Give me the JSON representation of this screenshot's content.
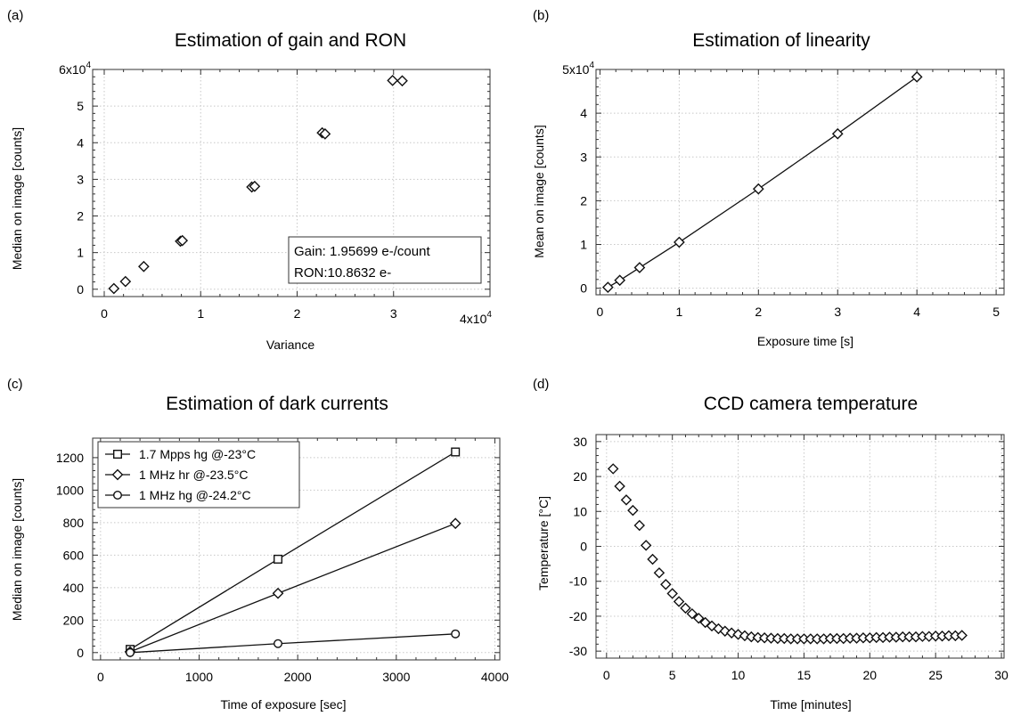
{
  "panels": {
    "a": {
      "label": "(a)",
      "exponent_note": "4x10",
      "info_box": {
        "gain": "Gain: 1.95699 e-/count",
        "ron": "RON:10.8632 e-"
      }
    },
    "b": {
      "label": "(b)"
    },
    "c": {
      "label": "(c)"
    },
    "d": {
      "label": "(d)"
    }
  },
  "chart_data": [
    {
      "id": "a",
      "type": "scatter",
      "title": "Estimation of gain and RON",
      "xlabel": "Variance",
      "ylabel": "Median on image [counts]",
      "xlim": [
        -0.12,
        4.0
      ],
      "ylim": [
        -0.2,
        6.0
      ],
      "x_scale": "x10^4",
      "y_scale": "x10^4",
      "xticks": [
        0,
        1,
        2,
        3
      ],
      "xtick_labels": [
        "0",
        "1",
        "2",
        "3"
      ],
      "yticks": [
        0,
        1,
        2,
        3,
        4,
        5,
        6
      ],
      "ytick_labels": [
        "0",
        "1",
        "2",
        "3",
        "4",
        "5",
        "6x10"
      ],
      "marker": "diamond",
      "grid": true,
      "series": [
        {
          "x": [
            0.1,
            0.22,
            0.41,
            0.79,
            0.81,
            1.53,
            1.56,
            2.26,
            2.29,
            2.99,
            3.09
          ],
          "y": [
            0.02,
            0.21,
            0.62,
            1.31,
            1.33,
            2.79,
            2.81,
            4.27,
            4.24,
            5.7,
            5.69
          ]
        }
      ]
    },
    {
      "id": "b",
      "type": "line",
      "title": "Estimation of linearity",
      "xlabel": "Exposure time [s]",
      "ylabel": "Mean on image [counts]",
      "xlim": [
        -0.05,
        5.1
      ],
      "ylim": [
        -0.15,
        5.0
      ],
      "y_scale": "x10^4",
      "xticks": [
        0,
        1,
        2,
        3,
        4,
        5
      ],
      "xtick_labels": [
        "0",
        "1",
        "2",
        "3",
        "4",
        "5"
      ],
      "yticks": [
        0,
        1,
        2,
        3,
        4,
        5
      ],
      "ytick_labels": [
        "0",
        "1",
        "2",
        "3",
        "4",
        "5x10"
      ],
      "marker": "diamond",
      "grid": true,
      "series": [
        {
          "x": [
            0.1,
            0.25,
            0.5,
            1,
            2,
            3,
            4
          ],
          "y": [
            0.02,
            0.18,
            0.47,
            1.05,
            2.27,
            3.53,
            4.83
          ]
        }
      ]
    },
    {
      "id": "c",
      "type": "line",
      "title": "Estimation of dark currents",
      "xlabel": "Time of exposure [sec]",
      "ylabel": "Median on image [counts]",
      "xlim": [
        -80,
        4050
      ],
      "ylim": [
        -45,
        1320
      ],
      "xticks": [
        0,
        1000,
        2000,
        3000,
        4000
      ],
      "xtick_labels": [
        "0",
        "1000",
        "2000",
        "3000",
        "4000"
      ],
      "yticks": [
        0,
        200,
        400,
        600,
        800,
        1000,
        1200
      ],
      "ytick_labels": [
        "0",
        "200",
        "400",
        "600",
        "800",
        "1000",
        "1200"
      ],
      "grid": true,
      "legend": "top-left",
      "series": [
        {
          "name": "1.7 Mpps hg @-23°C",
          "marker": "square",
          "x": [
            300,
            1800,
            3600
          ],
          "y": [
            20,
            575,
            1235
          ]
        },
        {
          "name": "1 MHz hr @-23.5°C",
          "marker": "diamond",
          "x": [
            300,
            1800,
            3600
          ],
          "y": [
            5,
            365,
            795
          ]
        },
        {
          "name": "1 MHz hg @-24.2°C",
          "marker": "circle",
          "x": [
            300,
            1800,
            3600
          ],
          "y": [
            0,
            55,
            115
          ]
        }
      ]
    },
    {
      "id": "d",
      "type": "scatter",
      "title": "CCD camera temperature",
      "xlabel": "Time [minutes]",
      "ylabel": "Temperature [°C]",
      "xlim": [
        -0.8,
        30.2
      ],
      "ylim": [
        -32,
        32
      ],
      "xticks": [
        0,
        5,
        10,
        15,
        20,
        25,
        30
      ],
      "xtick_labels": [
        "0",
        "5",
        "10",
        "15",
        "20",
        "25",
        "30"
      ],
      "yticks": [
        -30,
        -20,
        -10,
        0,
        10,
        20,
        30
      ],
      "ytick_labels": [
        "-30",
        "-20",
        "-10",
        "0",
        "10",
        "20",
        "30"
      ],
      "marker": "diamond",
      "grid": true,
      "series": [
        {
          "x": [
            0.5,
            1.0,
            1.5,
            2.0,
            2.5,
            3.0,
            3.5,
            4.0,
            4.5,
            5.0,
            5.5,
            6.0,
            6.5,
            7.0,
            7.5,
            8.0,
            8.5,
            9.0,
            9.5,
            10.0,
            10.5,
            11.0,
            11.5,
            12.0,
            12.5,
            13.0,
            13.5,
            14.0,
            14.5,
            15.0,
            15.5,
            16.0,
            16.5,
            17.0,
            17.5,
            18.0,
            18.5,
            19.0,
            19.5,
            20.0,
            20.5,
            21.0,
            21.5,
            22.0,
            22.5,
            23.0,
            23.5,
            24.0,
            24.5,
            25.0,
            25.5,
            26.0,
            26.5,
            27.0
          ],
          "y": [
            22.2,
            17.2,
            13.3,
            10.3,
            6.0,
            0.3,
            -3.7,
            -7.6,
            -10.9,
            -13.5,
            -15.8,
            -17.7,
            -19.3,
            -20.6,
            -21.8,
            -22.8,
            -23.6,
            -24.3,
            -24.8,
            -25.2,
            -25.6,
            -25.9,
            -26.1,
            -26.2,
            -26.3,
            -26.4,
            -26.4,
            -26.5,
            -26.5,
            -26.5,
            -26.5,
            -26.5,
            -26.5,
            -26.4,
            -26.4,
            -26.4,
            -26.3,
            -26.3,
            -26.2,
            -26.2,
            -26.1,
            -26.1,
            -26.0,
            -26.0,
            -25.9,
            -25.9,
            -25.9,
            -25.8,
            -25.8,
            -25.7,
            -25.7,
            -25.6,
            -25.6,
            -25.5
          ]
        }
      ]
    }
  ]
}
